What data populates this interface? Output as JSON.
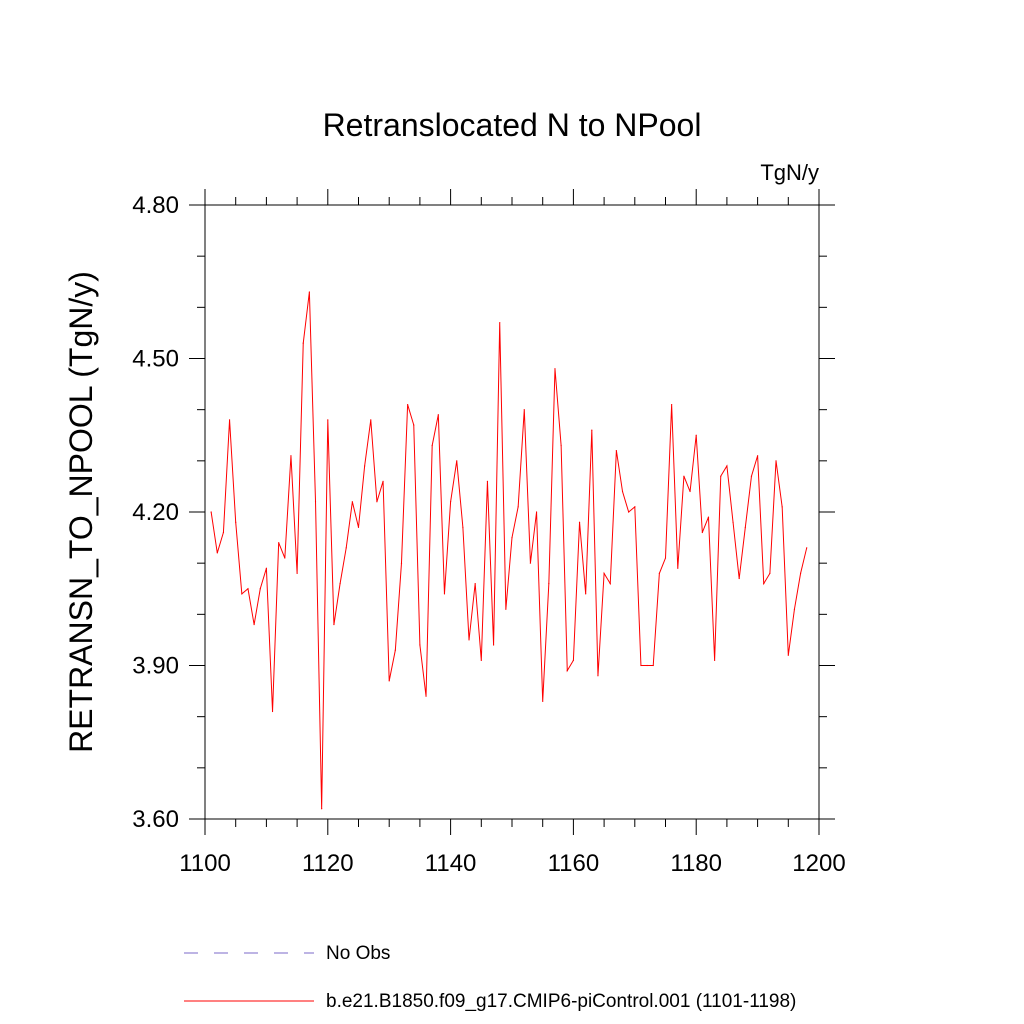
{
  "chart_data": {
    "type": "line",
    "title": "Retranslocated N to NPool",
    "units_label": "TgN/y",
    "ylabel": "RETRANSN_TO_NPOOL  (TgN/y)",
    "xlabel": "",
    "xlim": [
      1100,
      1200
    ],
    "ylim": [
      3.6,
      4.8
    ],
    "x_ticks": [
      1100,
      1120,
      1140,
      1160,
      1180,
      1200
    ],
    "x_minor_step": 5,
    "y_ticks": [
      3.6,
      3.9,
      4.2,
      4.5,
      4.8
    ],
    "y_tick_labels": [
      "3.60",
      "3.90",
      "4.20",
      "4.50",
      "4.80"
    ],
    "y_minor_step": 0.1,
    "grid": false,
    "legend": [
      {
        "label": "No Obs",
        "color": "#7b68c8",
        "dash": true
      },
      {
        "label": "b.e21.B1850.f09_g17.CMIP6-piControl.001 (1101-1198)",
        "color": "#ff0000",
        "dash": false
      }
    ],
    "series": [
      {
        "name": "b.e21.B1850.f09_g17.CMIP6-piControl.001 (1101-1198)",
        "color": "#ff0000",
        "x": [
          1101,
          1102,
          1103,
          1104,
          1105,
          1106,
          1107,
          1108,
          1109,
          1110,
          1111,
          1112,
          1113,
          1114,
          1115,
          1116,
          1117,
          1118,
          1119,
          1120,
          1121,
          1122,
          1123,
          1124,
          1125,
          1126,
          1127,
          1128,
          1129,
          1130,
          1131,
          1132,
          1133,
          1134,
          1135,
          1136,
          1137,
          1138,
          1139,
          1140,
          1141,
          1142,
          1143,
          1144,
          1145,
          1146,
          1147,
          1148,
          1149,
          1150,
          1151,
          1152,
          1153,
          1154,
          1155,
          1156,
          1157,
          1158,
          1159,
          1160,
          1161,
          1162,
          1163,
          1164,
          1165,
          1166,
          1167,
          1168,
          1169,
          1170,
          1171,
          1172,
          1173,
          1174,
          1175,
          1176,
          1177,
          1178,
          1179,
          1180,
          1181,
          1182,
          1183,
          1184,
          1185,
          1186,
          1187,
          1188,
          1189,
          1190,
          1191,
          1192,
          1193,
          1194,
          1195,
          1196,
          1197,
          1198
        ],
        "values": [
          4.2,
          4.12,
          4.16,
          4.38,
          4.18,
          4.04,
          4.05,
          3.98,
          4.05,
          4.09,
          3.81,
          4.14,
          4.11,
          4.31,
          4.08,
          4.53,
          4.63,
          4.22,
          3.62,
          4.38,
          3.98,
          4.06,
          4.13,
          4.22,
          4.17,
          4.29,
          4.38,
          4.22,
          4.26,
          3.87,
          3.93,
          4.1,
          4.41,
          4.37,
          3.94,
          3.84,
          4.33,
          4.39,
          4.04,
          4.22,
          4.3,
          4.17,
          3.95,
          4.06,
          3.91,
          4.26,
          3.94,
          4.57,
          4.01,
          4.15,
          4.21,
          4.4,
          4.1,
          4.2,
          3.83,
          4.06,
          4.48,
          4.33,
          3.89,
          3.91,
          4.18,
          4.04,
          4.36,
          3.88,
          4.08,
          4.06,
          4.32,
          4.24,
          4.2,
          4.21,
          3.9,
          3.9,
          3.9,
          4.08,
          4.11,
          4.41,
          4.09,
          4.27,
          4.24,
          4.35,
          4.16,
          4.19,
          3.91,
          4.27,
          4.29,
          4.18,
          4.07,
          4.17,
          4.27,
          4.31,
          4.06,
          4.08,
          4.3,
          4.21,
          3.92,
          4.01,
          4.08,
          4.13
        ]
      }
    ]
  }
}
